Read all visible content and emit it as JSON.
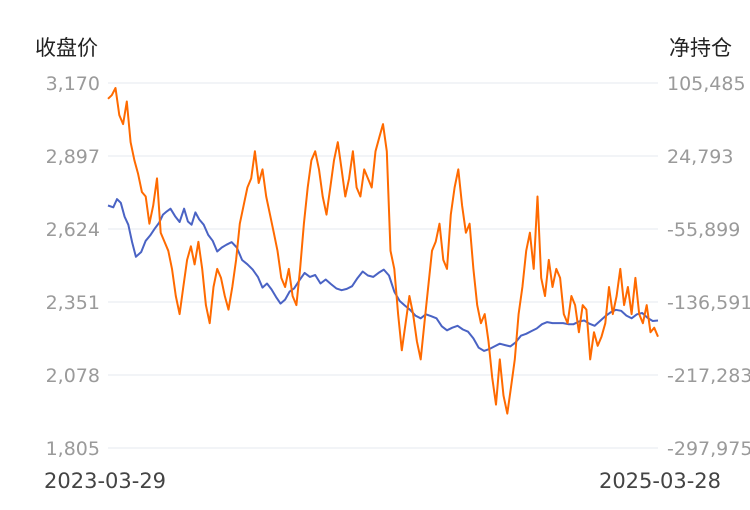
{
  "chart_data": {
    "type": "line",
    "left_axis_title": "收盘价",
    "right_axis_title": "净持仓",
    "left_ticks": [
      "3,170",
      "2,897",
      "2,624",
      "2,351",
      "2,078",
      "1,805"
    ],
    "right_ticks": [
      "105,485",
      "24,793",
      "-55,899",
      "-136,591",
      "-217,283",
      "-297,975"
    ],
    "left_range": [
      1805,
      3170
    ],
    "right_range": [
      -297975,
      105485
    ],
    "x_start_label": "2023-03-29",
    "x_end_label": "2025-03-28",
    "x_range": [
      "2023-03-29",
      "2025-03-28"
    ],
    "grid": true,
    "series": [
      {
        "axis": "left",
        "color": "#4a63c4",
        "points": [
          [
            "2023-03-29",
            2712
          ],
          [
            "2023-04-05",
            2705
          ],
          [
            "2023-04-10",
            2736
          ],
          [
            "2023-04-15",
            2722
          ],
          [
            "2023-04-20",
            2670
          ],
          [
            "2023-04-25",
            2640
          ],
          [
            "2023-04-30",
            2575
          ],
          [
            "2023-05-05",
            2520
          ],
          [
            "2023-05-12",
            2538
          ],
          [
            "2023-05-18",
            2580
          ],
          [
            "2023-05-24",
            2600
          ],
          [
            "2023-05-30",
            2625
          ],
          [
            "2023-06-05",
            2648
          ],
          [
            "2023-06-10",
            2678
          ],
          [
            "2023-06-15",
            2690
          ],
          [
            "2023-06-20",
            2700
          ],
          [
            "2023-06-26",
            2672
          ],
          [
            "2023-07-02",
            2650
          ],
          [
            "2023-07-08",
            2700
          ],
          [
            "2023-07-13",
            2652
          ],
          [
            "2023-07-18",
            2640
          ],
          [
            "2023-07-23",
            2686
          ],
          [
            "2023-07-28",
            2660
          ],
          [
            "2023-08-03",
            2640
          ],
          [
            "2023-08-09",
            2602
          ],
          [
            "2023-08-15",
            2580
          ],
          [
            "2023-08-21",
            2540
          ],
          [
            "2023-08-27",
            2555
          ],
          [
            "2023-09-02",
            2565
          ],
          [
            "2023-09-09",
            2575
          ],
          [
            "2023-09-16",
            2555
          ],
          [
            "2023-09-23",
            2508
          ],
          [
            "2023-09-30",
            2492
          ],
          [
            "2023-10-07",
            2472
          ],
          [
            "2023-10-14",
            2445
          ],
          [
            "2023-10-20",
            2405
          ],
          [
            "2023-10-26",
            2420
          ],
          [
            "2023-11-01",
            2398
          ],
          [
            "2023-11-07",
            2370
          ],
          [
            "2023-11-13",
            2345
          ],
          [
            "2023-11-19",
            2360
          ],
          [
            "2023-11-25",
            2390
          ],
          [
            "2023-12-01",
            2402
          ],
          [
            "2023-12-08",
            2432
          ],
          [
            "2023-12-15",
            2460
          ],
          [
            "2023-12-22",
            2445
          ],
          [
            "2023-12-29",
            2452
          ],
          [
            "2024-01-05",
            2420
          ],
          [
            "2024-01-12",
            2435
          ],
          [
            "2024-01-19",
            2418
          ],
          [
            "2024-01-26",
            2402
          ],
          [
            "2024-02-02",
            2395
          ],
          [
            "2024-02-09",
            2400
          ],
          [
            "2024-02-16",
            2410
          ],
          [
            "2024-02-23",
            2440
          ],
          [
            "2024-03-01",
            2465
          ],
          [
            "2024-03-08",
            2450
          ],
          [
            "2024-03-15",
            2445
          ],
          [
            "2024-03-22",
            2460
          ],
          [
            "2024-03-29",
            2472
          ],
          [
            "2024-04-05",
            2450
          ],
          [
            "2024-04-12",
            2390
          ],
          [
            "2024-04-19",
            2355
          ],
          [
            "2024-04-26",
            2338
          ],
          [
            "2024-05-03",
            2322
          ],
          [
            "2024-05-10",
            2300
          ],
          [
            "2024-05-17",
            2290
          ],
          [
            "2024-05-24",
            2305
          ],
          [
            "2024-05-31",
            2298
          ],
          [
            "2024-06-07",
            2290
          ],
          [
            "2024-06-14",
            2260
          ],
          [
            "2024-06-21",
            2245
          ],
          [
            "2024-06-28",
            2255
          ],
          [
            "2024-07-05",
            2262
          ],
          [
            "2024-07-12",
            2248
          ],
          [
            "2024-07-19",
            2240
          ],
          [
            "2024-07-26",
            2215
          ],
          [
            "2024-08-02",
            2180
          ],
          [
            "2024-08-09",
            2168
          ],
          [
            "2024-08-16",
            2175
          ],
          [
            "2024-08-23",
            2185
          ],
          [
            "2024-08-30",
            2195
          ],
          [
            "2024-09-06",
            2190
          ],
          [
            "2024-09-13",
            2185
          ],
          [
            "2024-09-20",
            2200
          ],
          [
            "2024-09-27",
            2225
          ],
          [
            "2024-10-04",
            2232
          ],
          [
            "2024-10-11",
            2242
          ],
          [
            "2024-10-18",
            2252
          ],
          [
            "2024-10-25",
            2268
          ],
          [
            "2024-11-01",
            2276
          ],
          [
            "2024-11-08",
            2272
          ],
          [
            "2024-11-15",
            2272
          ],
          [
            "2024-11-22",
            2272
          ],
          [
            "2024-11-29",
            2268
          ],
          [
            "2024-12-06",
            2268
          ],
          [
            "2024-12-13",
            2278
          ],
          [
            "2024-12-20",
            2282
          ],
          [
            "2024-12-27",
            2270
          ],
          [
            "2025-01-03",
            2262
          ],
          [
            "2025-01-10",
            2280
          ],
          [
            "2025-01-17",
            2298
          ],
          [
            "2025-01-24",
            2312
          ],
          [
            "2025-01-31",
            2322
          ],
          [
            "2025-02-07",
            2318
          ],
          [
            "2025-02-14",
            2300
          ],
          [
            "2025-02-21",
            2290
          ],
          [
            "2025-02-28",
            2305
          ],
          [
            "2025-03-07",
            2310
          ],
          [
            "2025-03-14",
            2292
          ],
          [
            "2025-03-21",
            2280
          ],
          [
            "2025-03-28",
            2282
          ]
        ]
      },
      {
        "axis": "right",
        "color": "#ff6a00",
        "points": [
          [
            "2023-03-29",
            88000
          ],
          [
            "2023-04-03",
            92000
          ],
          [
            "2023-04-08",
            100000
          ],
          [
            "2023-04-13",
            70000
          ],
          [
            "2023-04-18",
            60000
          ],
          [
            "2023-04-23",
            85000
          ],
          [
            "2023-04-28",
            40000
          ],
          [
            "2023-05-03",
            20000
          ],
          [
            "2023-05-08",
            5000
          ],
          [
            "2023-05-13",
            -15000
          ],
          [
            "2023-05-18",
            -20000
          ],
          [
            "2023-05-23",
            -50000
          ],
          [
            "2023-05-28",
            -30000
          ],
          [
            "2023-06-02",
            0
          ],
          [
            "2023-06-07",
            -60000
          ],
          [
            "2023-06-12",
            -70000
          ],
          [
            "2023-06-17",
            -80000
          ],
          [
            "2023-06-22",
            -100000
          ],
          [
            "2023-06-27",
            -130000
          ],
          [
            "2023-07-02",
            -150000
          ],
          [
            "2023-07-07",
            -120000
          ],
          [
            "2023-07-12",
            -90000
          ],
          [
            "2023-07-17",
            -75000
          ],
          [
            "2023-07-22",
            -95000
          ],
          [
            "2023-07-27",
            -70000
          ],
          [
            "2023-08-01",
            -100000
          ],
          [
            "2023-08-06",
            -140000
          ],
          [
            "2023-08-11",
            -160000
          ],
          [
            "2023-08-16",
            -120000
          ],
          [
            "2023-08-21",
            -100000
          ],
          [
            "2023-08-26",
            -110000
          ],
          [
            "2023-08-31",
            -130000
          ],
          [
            "2023-09-05",
            -145000
          ],
          [
            "2023-09-10",
            -120000
          ],
          [
            "2023-09-15",
            -90000
          ],
          [
            "2023-09-20",
            -50000
          ],
          [
            "2023-09-25",
            -30000
          ],
          [
            "2023-09-30",
            -10000
          ],
          [
            "2023-10-05",
            0
          ],
          [
            "2023-10-10",
            30000
          ],
          [
            "2023-10-15",
            -5000
          ],
          [
            "2023-10-20",
            10000
          ],
          [
            "2023-10-25",
            -20000
          ],
          [
            "2023-10-30",
            -40000
          ],
          [
            "2023-11-04",
            -60000
          ],
          [
            "2023-11-09",
            -80000
          ],
          [
            "2023-11-14",
            -110000
          ],
          [
            "2023-11-19",
            -120000
          ],
          [
            "2023-11-24",
            -100000
          ],
          [
            "2023-11-29",
            -130000
          ],
          [
            "2023-12-04",
            -140000
          ],
          [
            "2023-12-09",
            -100000
          ],
          [
            "2023-12-14",
            -50000
          ],
          [
            "2023-12-19",
            -10000
          ],
          [
            "2023-12-24",
            20000
          ],
          [
            "2023-12-29",
            30000
          ],
          [
            "2024-01-03",
            10000
          ],
          [
            "2024-01-08",
            -20000
          ],
          [
            "2024-01-13",
            -40000
          ],
          [
            "2024-01-18",
            -10000
          ],
          [
            "2024-01-23",
            20000
          ],
          [
            "2024-01-28",
            40000
          ],
          [
            "2024-02-02",
            10000
          ],
          [
            "2024-02-07",
            -20000
          ],
          [
            "2024-02-12",
            0
          ],
          [
            "2024-02-17",
            30000
          ],
          [
            "2024-02-22",
            -10000
          ],
          [
            "2024-02-27",
            -20000
          ],
          [
            "2024-03-03",
            10000
          ],
          [
            "2024-03-08",
            0
          ],
          [
            "2024-03-13",
            -10000
          ],
          [
            "2024-03-18",
            30000
          ],
          [
            "2024-03-23",
            45000
          ],
          [
            "2024-03-28",
            60000
          ],
          [
            "2024-04-02",
            30000
          ],
          [
            "2024-04-07",
            -80000
          ],
          [
            "2024-04-12",
            -100000
          ],
          [
            "2024-04-17",
            -150000
          ],
          [
            "2024-04-22",
            -190000
          ],
          [
            "2024-04-27",
            -160000
          ],
          [
            "2024-05-02",
            -130000
          ],
          [
            "2024-05-07",
            -150000
          ],
          [
            "2024-05-12",
            -180000
          ],
          [
            "2024-05-17",
            -200000
          ],
          [
            "2024-05-22",
            -160000
          ],
          [
            "2024-05-27",
            -120000
          ],
          [
            "2024-06-01",
            -80000
          ],
          [
            "2024-06-06",
            -70000
          ],
          [
            "2024-06-11",
            -50000
          ],
          [
            "2024-06-16",
            -90000
          ],
          [
            "2024-06-21",
            -100000
          ],
          [
            "2024-06-26",
            -40000
          ],
          [
            "2024-07-01",
            -10000
          ],
          [
            "2024-07-06",
            10000
          ],
          [
            "2024-07-11",
            -30000
          ],
          [
            "2024-07-16",
            -60000
          ],
          [
            "2024-07-21",
            -50000
          ],
          [
            "2024-07-26",
            -100000
          ],
          [
            "2024-07-31",
            -140000
          ],
          [
            "2024-08-05",
            -160000
          ],
          [
            "2024-08-10",
            -150000
          ],
          [
            "2024-08-15",
            -180000
          ],
          [
            "2024-08-20",
            -220000
          ],
          [
            "2024-08-25",
            -250000
          ],
          [
            "2024-08-30",
            -200000
          ],
          [
            "2024-09-04",
            -240000
          ],
          [
            "2024-09-09",
            -260000
          ],
          [
            "2024-09-14",
            -230000
          ],
          [
            "2024-09-19",
            -200000
          ],
          [
            "2024-09-24",
            -150000
          ],
          [
            "2024-09-29",
            -120000
          ],
          [
            "2024-10-04",
            -80000
          ],
          [
            "2024-10-09",
            -60000
          ],
          [
            "2024-10-14",
            -100000
          ],
          [
            "2024-10-19",
            -20000
          ],
          [
            "2024-10-24",
            -110000
          ],
          [
            "2024-10-29",
            -130000
          ],
          [
            "2024-11-03",
            -90000
          ],
          [
            "2024-11-08",
            -120000
          ],
          [
            "2024-11-13",
            -100000
          ],
          [
            "2024-11-18",
            -110000
          ],
          [
            "2024-11-23",
            -150000
          ],
          [
            "2024-11-28",
            -160000
          ],
          [
            "2024-12-03",
            -130000
          ],
          [
            "2024-12-08",
            -140000
          ],
          [
            "2024-12-13",
            -170000
          ],
          [
            "2024-12-18",
            -140000
          ],
          [
            "2024-12-23",
            -145000
          ],
          [
            "2024-12-28",
            -200000
          ],
          [
            "2025-01-02",
            -170000
          ],
          [
            "2025-01-07",
            -185000
          ],
          [
            "2025-01-12",
            -175000
          ],
          [
            "2025-01-17",
            -160000
          ],
          [
            "2025-01-22",
            -120000
          ],
          [
            "2025-01-27",
            -150000
          ],
          [
            "2025-02-01",
            -130000
          ],
          [
            "2025-02-06",
            -100000
          ],
          [
            "2025-02-11",
            -140000
          ],
          [
            "2025-02-16",
            -120000
          ],
          [
            "2025-02-21",
            -150000
          ],
          [
            "2025-02-26",
            -110000
          ],
          [
            "2025-03-03",
            -150000
          ],
          [
            "2025-03-08",
            -160000
          ],
          [
            "2025-03-13",
            -140000
          ],
          [
            "2025-03-18",
            -170000
          ],
          [
            "2025-03-23",
            -165000
          ],
          [
            "2025-03-28",
            -175000
          ]
        ]
      }
    ]
  }
}
